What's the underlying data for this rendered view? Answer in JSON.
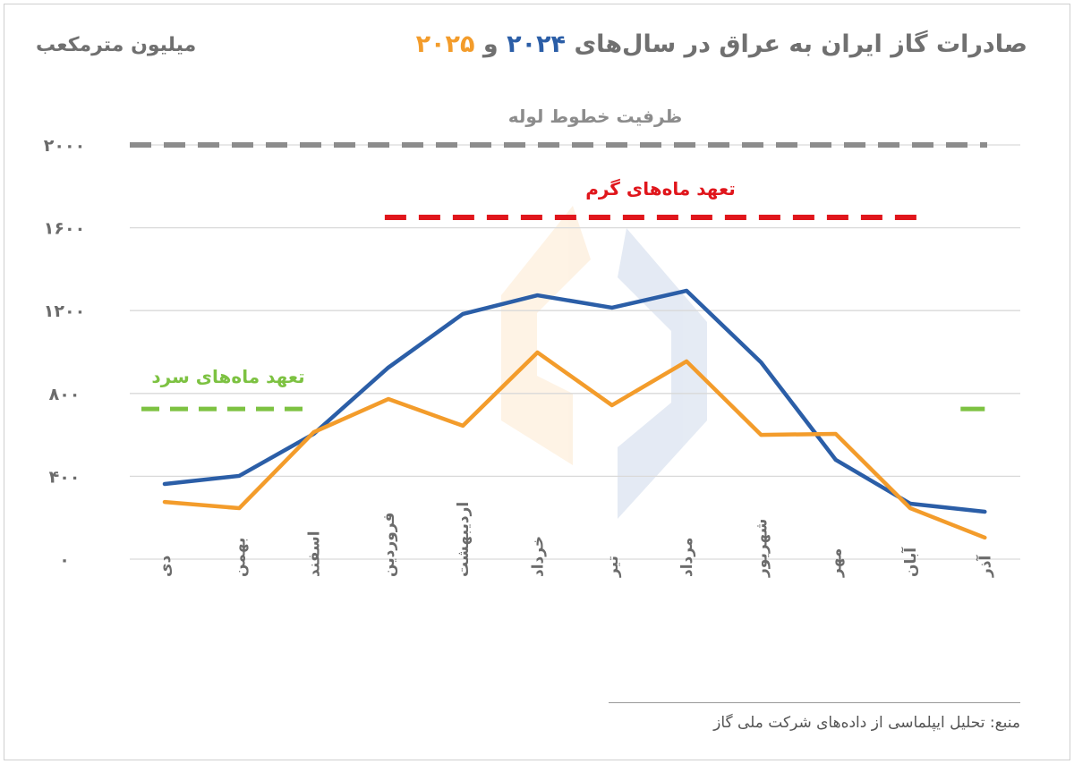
{
  "title": {
    "prefix": "صادرات گاز ایران به عراق در سال‌های",
    "year1": "۲۰۲۴",
    "joiner": "و",
    "year2": "۲۰۲۵"
  },
  "unit_label": "میلیون مترمکعب",
  "source": "منبع: تحلیل ایپلماسی از داده‌های شرکت ملی گاز",
  "chart_data": {
    "type": "line",
    "title": "صادرات گاز ایران به عراق در سال‌های ۲۰۲۴ و ۲۰۲۵",
    "ylabel": "میلیون مترمکعب",
    "ylim": [
      0,
      2000
    ],
    "yticks": [
      0,
      400,
      800,
      1200,
      1600,
      2000
    ],
    "ytick_labels": [
      "۰",
      "۴۰۰",
      "۸۰۰",
      "۱۲۰۰",
      "۱۶۰۰",
      "۲۰۰۰"
    ],
    "grid": true,
    "categories": [
      "دی",
      "بهمن",
      "اسفند",
      "فروردین",
      "اردیبهشت",
      "خرداد",
      "تیر",
      "مرداد",
      "شهریور",
      "مهر",
      "آبان",
      "آذر"
    ],
    "series": [
      {
        "name": "۲۰۲۴",
        "color": "#2b5ea7",
        "values": [
          363,
          402,
          605,
          925,
          1184,
          1274,
          1214,
          1296,
          950,
          480,
          268,
          229
        ]
      },
      {
        "name": "۲۰۲۵",
        "color": "#f39c2b",
        "values": [
          276,
          246,
          613,
          773,
          644,
          998,
          743,
          955,
          600,
          605,
          246,
          104
        ]
      }
    ],
    "reference_lines": [
      {
        "label": "ظرفیت خطوط لوله",
        "value": 2000,
        "color": "#8c8c8c",
        "from": "دی",
        "to": "آذر"
      },
      {
        "label": "تعهد ماه‌های گرم",
        "value": 1650,
        "color": "#e0161c",
        "from": "فروردین",
        "to": "آبان"
      },
      {
        "label": "تعهد ماه‌های سرد",
        "value": 725,
        "color": "#7dc242",
        "segments": [
          [
            "دی",
            "اسفند"
          ],
          [
            "آذر",
            "آذر"
          ]
        ]
      }
    ]
  }
}
